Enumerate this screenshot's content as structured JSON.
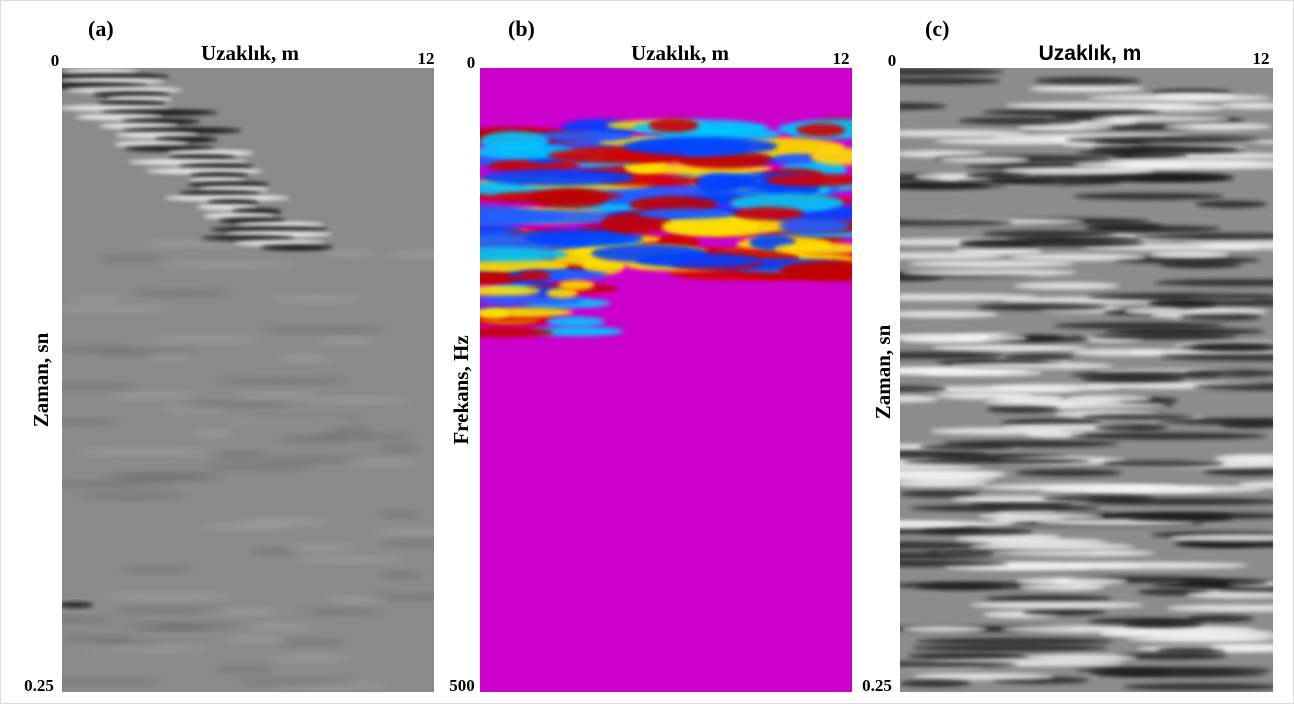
{
  "panels": [
    {
      "label": "(a)",
      "x_axis_title": "Uzaklık, m",
      "origin": "0",
      "x_end": "12",
      "y_axis_title": "Zaman, sn",
      "y_end": "0.25"
    },
    {
      "label": "(b)",
      "x_axis_title": "Uzaklık, m",
      "origin": "0",
      "x_end": "12",
      "y_axis_title": "Frekans, Hz",
      "y_end": "500"
    },
    {
      "label": "(c)",
      "x_axis_title": "Uzaklık, m",
      "origin": "0",
      "x_end": "12",
      "y_axis_title": "Zaman, sn",
      "y_end": "0.25"
    }
  ]
}
